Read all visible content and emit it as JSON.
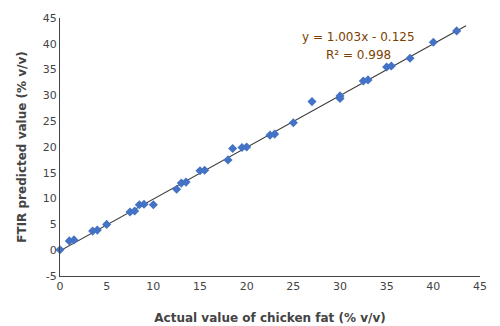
{
  "chart_data": {
    "type": "scatter",
    "xlabel": "Actual value of chicken fat (% v/v)",
    "ylabel": "FTIR predicted value (% v/v)",
    "series": [
      {
        "type": "line",
        "color": "#3D3D3D",
        "line_style": "solid",
        "x": [
          0,
          43.5
        ],
        "values": [
          -0.125,
          43.5055
        ]
      },
      {
        "type": "scatter",
        "color": "#4472C4",
        "marker": "diamond",
        "x": [
          0.0,
          1.0,
          1.5,
          3.5,
          4.0,
          5.0,
          7.5,
          8.0,
          8.5,
          9.0,
          10.0,
          12.5,
          13.0,
          13.5,
          15.0,
          15.5,
          18.0,
          18.5,
          19.5,
          20.0,
          22.5,
          23.0,
          25.0,
          27.0,
          30.0,
          30.0,
          32.5,
          33.0,
          35.0,
          35.5,
          37.5,
          40.0,
          42.5
        ],
        "values": [
          0.1,
          1.8,
          2.0,
          3.7,
          3.9,
          5.0,
          7.4,
          7.6,
          8.8,
          8.9,
          8.8,
          11.8,
          13.0,
          13.2,
          15.4,
          15.5,
          17.5,
          19.7,
          19.9,
          20.0,
          22.3,
          22.5,
          24.7,
          28.8,
          29.4,
          29.9,
          32.8,
          33.0,
          35.5,
          35.7,
          37.2,
          40.3,
          42.5
        ]
      }
    ],
    "annotations": [
      {
        "text": "y = 1.003x - 0.125",
        "color": "#7B3F00"
      },
      {
        "text": "R² = 0.998",
        "color": "#7B3F00"
      }
    ],
    "xlim": [
      0,
      45
    ],
    "xticks": [
      0,
      5,
      10,
      15,
      20,
      25,
      30,
      35,
      40,
      45
    ],
    "ylim": [
      -5,
      45
    ],
    "yticks": [
      -5,
      0,
      5,
      10,
      15,
      20,
      25,
      30,
      35,
      40,
      45
    ],
    "grid": false
  }
}
